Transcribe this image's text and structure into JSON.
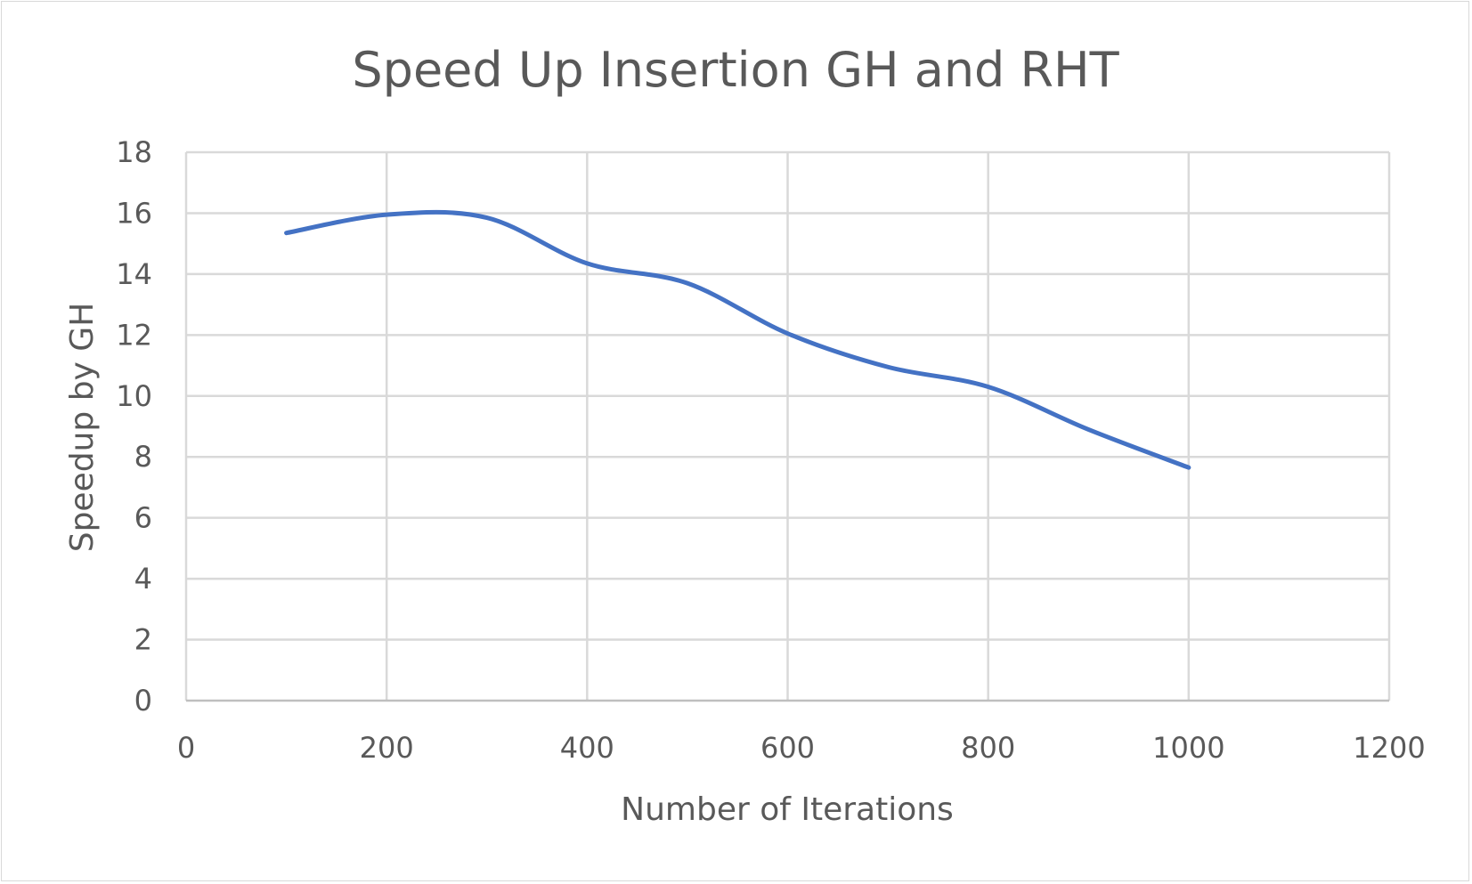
{
  "chart_data": {
    "type": "line",
    "title": "Speed Up Insertion GH and RHT",
    "xlabel": "Number of Iterations",
    "ylabel": "Speedup by GH",
    "xlim": [
      0,
      1200
    ],
    "ylim": [
      0,
      18
    ],
    "x_ticks": [
      0,
      200,
      400,
      600,
      800,
      1000,
      1200
    ],
    "y_ticks": [
      0,
      2,
      4,
      6,
      8,
      10,
      12,
      14,
      16,
      18
    ],
    "grid": true,
    "legend": "none",
    "smooth": true,
    "series": [
      {
        "color": "#4472c4",
        "x": [
          100,
          200,
          300,
          400,
          500,
          600,
          700,
          800,
          900,
          1000
        ],
        "y": [
          15.35,
          15.95,
          15.85,
          14.35,
          13.7,
          12.05,
          10.95,
          10.3,
          8.9,
          7.65
        ]
      }
    ]
  }
}
